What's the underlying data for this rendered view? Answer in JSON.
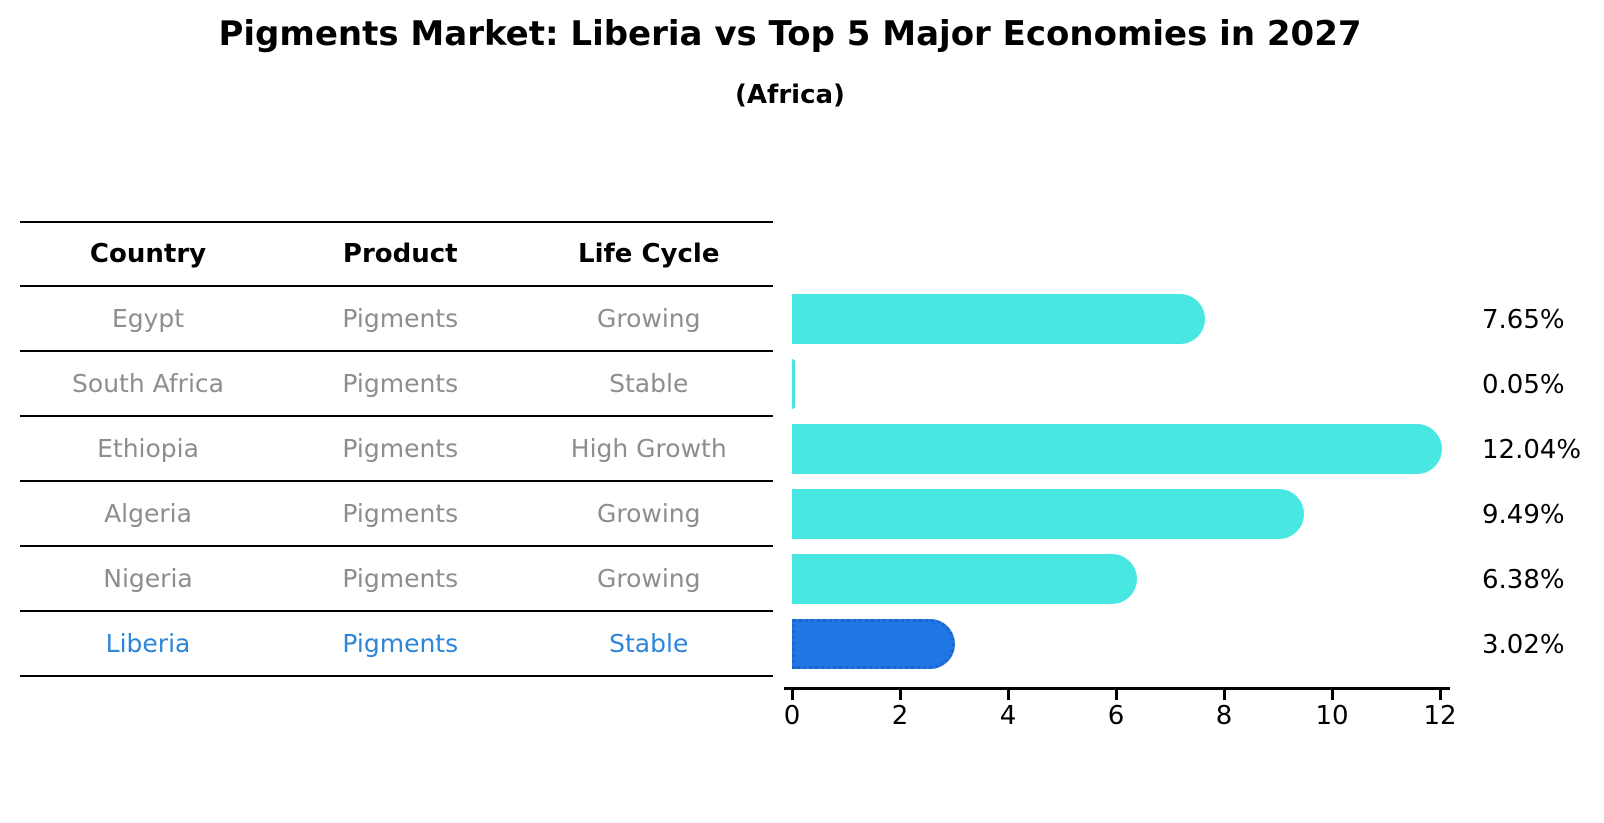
{
  "header": {
    "title": "Pigments Market: Liberia vs Top 5 Major Economies in 2027",
    "subtitle": "(Africa)"
  },
  "table": {
    "columns": [
      "Country",
      "Product",
      "Life Cycle"
    ],
    "rows": [
      {
        "country": "Egypt",
        "product": "Pigments",
        "life_cycle": "Growing",
        "highlight": false
      },
      {
        "country": "South Africa",
        "product": "Pigments",
        "life_cycle": "Stable",
        "highlight": false
      },
      {
        "country": "Ethiopia",
        "product": "Pigments",
        "life_cycle": "High Growth",
        "highlight": false
      },
      {
        "country": "Algeria",
        "product": "Pigments",
        "life_cycle": "Growing",
        "highlight": false
      },
      {
        "country": "Nigeria",
        "product": "Pigments",
        "life_cycle": "Growing",
        "highlight": false
      },
      {
        "country": "Liberia",
        "product": "Pigments",
        "life_cycle": "Stable",
        "highlight": true
      }
    ]
  },
  "chart_data": {
    "type": "bar",
    "orientation": "horizontal",
    "title": "Pigments Market: Liberia vs Top 5 Major Economies in 2027",
    "subtitle": "(Africa)",
    "categories": [
      "Egypt",
      "South Africa",
      "Ethiopia",
      "Algeria",
      "Nigeria",
      "Liberia"
    ],
    "values": [
      7.65,
      0.05,
      12.04,
      9.49,
      6.38,
      3.02
    ],
    "value_labels": [
      "7.65%",
      "0.05%",
      "12.04%",
      "9.49%",
      "6.38%",
      "3.02%"
    ],
    "x_ticks": [
      0,
      2,
      4,
      6,
      8,
      10,
      12
    ],
    "xlim": [
      0,
      12.3
    ],
    "grid": false,
    "legend": "none",
    "highlight_index": 5,
    "bar_color": "#48e7e2",
    "highlight_bar_color": "#2176e5",
    "highlight_border_color": "#1e63c8",
    "highlight_text_color": "#2e86d9",
    "table_text_color": "#8e8e8e",
    "axis_color": "#000000"
  }
}
